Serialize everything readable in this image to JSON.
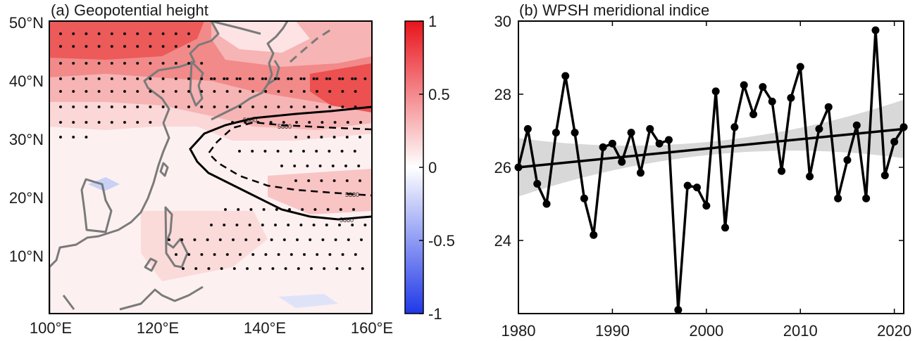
{
  "colors": {
    "positive": "#e8141c",
    "negative": "#1f38e8",
    "coast": "#7a7a7a",
    "line": "#000000",
    "band": "#d8d8d8"
  },
  "chart_data": [
    {
      "type": "heatmap",
      "title": "(a) Geopotential height",
      "x_ticks": [
        "100°E",
        "120°E",
        "140°E",
        "160°E"
      ],
      "y_ticks": [
        "10°N",
        "20°N",
        "30°N",
        "40°N",
        "50°N"
      ],
      "xlim": [
        100,
        160
      ],
      "ylim": [
        0,
        50
      ],
      "colorbar": {
        "min": -1,
        "max": 1,
        "tick_labels": [
          "1",
          "0.5",
          "0",
          "-0.5",
          "-1"
        ]
      },
      "contour_labels": [
        "5880",
        "5880",
        "5880",
        "5880"
      ],
      "stippling": "significant regions"
    },
    {
      "type": "line",
      "title": "(b) WPSH meridional indice",
      "x": [
        1980,
        1981,
        1982,
        1983,
        1984,
        1985,
        1986,
        1987,
        1988,
        1989,
        1990,
        1991,
        1992,
        1993,
        1994,
        1995,
        1996,
        1997,
        1998,
        1999,
        2000,
        2001,
        2002,
        2003,
        2004,
        2005,
        2006,
        2007,
        2008,
        2009,
        2010,
        2011,
        2012,
        2013,
        2014,
        2015,
        2016,
        2017,
        2018,
        2019,
        2020,
        2021
      ],
      "values": [
        26.0,
        27.05,
        25.55,
        25.0,
        26.95,
        28.5,
        26.95,
        25.15,
        24.15,
        26.55,
        26.65,
        26.15,
        26.95,
        25.85,
        27.05,
        26.65,
        26.75,
        22.1,
        25.5,
        25.45,
        24.95,
        28.08,
        24.35,
        27.1,
        28.25,
        27.45,
        28.2,
        27.8,
        25.9,
        27.9,
        28.75,
        25.75,
        27.05,
        27.65,
        25.15,
        26.2,
        27.15,
        25.15,
        29.75,
        25.78,
        26.7,
        27.1
      ],
      "trend": {
        "start": [
          1980,
          26.0
        ],
        "end": [
          2021,
          27.05
        ]
      },
      "x_ticks": [
        "1980",
        "1990",
        "2000",
        "2010",
        "2020"
      ],
      "y_ticks": [
        "24",
        "26",
        "28",
        "30"
      ],
      "xlim": [
        1980,
        2021
      ],
      "ylim": [
        22,
        30
      ]
    }
  ]
}
